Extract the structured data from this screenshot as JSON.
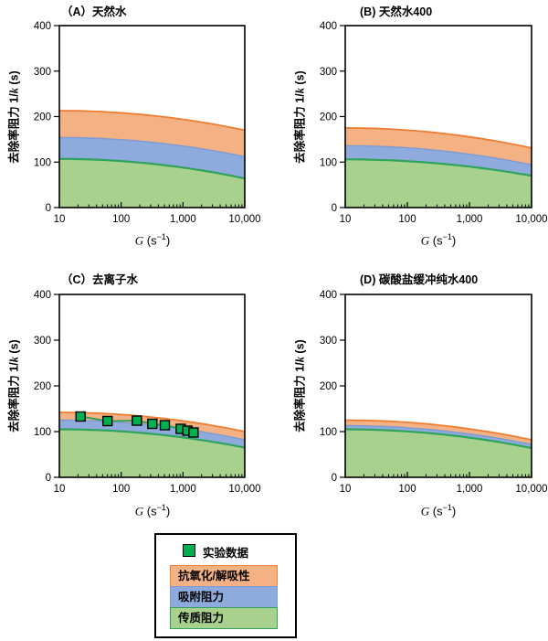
{
  "figure": {
    "background": "#FFFFFF",
    "y_label": {
      "prefix": "去除率阻力 1/",
      "italic": "k",
      "suffix": " (s)"
    },
    "x_label": {
      "italic": "G",
      "mid": " (s",
      "sup": "−1",
      "end": ")"
    }
  },
  "chart_data": [
    {
      "type": "area",
      "id": "A",
      "title": "（A）天然水",
      "x_scale": "log",
      "xlim": [
        10,
        10000
      ],
      "ylim": [
        0,
        400
      ],
      "x_ticks": [
        "10",
        "100",
        "1,000",
        "10,000"
      ],
      "y_ticks": [
        "0",
        "100",
        "200",
        "300",
        "400"
      ],
      "xlabel": "G (s⁻¹)",
      "ylabel": "去除率阻力 1/k (s)",
      "curve_model": "cumulative top of each band: v(G) = start − (start−end)·((log10(G)−1)²)/9",
      "series": [
        {
          "name": "传质阻力",
          "fill": "#A9D18E",
          "line": "#2FA35B",
          "start": 107,
          "end": 64
        },
        {
          "name": "吸附阻力",
          "fill": "#8FAADC",
          "line": "#7C9BD4",
          "start": 154,
          "end": 112
        },
        {
          "name": "抗氧化/解吸性",
          "fill": "#F4B183",
          "line": "#ED7D31",
          "start": 213,
          "end": 170
        }
      ]
    },
    {
      "type": "area",
      "id": "B",
      "title": "(B) 天然水400",
      "x_scale": "log",
      "xlim": [
        10,
        10000
      ],
      "ylim": [
        0,
        400
      ],
      "x_ticks": [
        "10",
        "100",
        "1,000",
        "10,000"
      ],
      "y_ticks": [
        "0",
        "100",
        "200",
        "300",
        "400"
      ],
      "xlabel": "G (s⁻¹)",
      "ylabel": "去除率阻力 1/k (s)",
      "series": [
        {
          "name": "传质阻力",
          "fill": "#A9D18E",
          "line": "#2FA35B",
          "start": 106,
          "end": 70
        },
        {
          "name": "吸附阻力",
          "fill": "#8FAADC",
          "line": "#7C9BD4",
          "start": 136,
          "end": 94
        },
        {
          "name": "抗氧化/解吸性",
          "fill": "#F4B183",
          "line": "#ED7D31",
          "start": 175,
          "end": 131
        }
      ]
    },
    {
      "type": "area",
      "id": "C",
      "title": "（C）去离子水",
      "x_scale": "log",
      "xlim": [
        10,
        10000
      ],
      "ylim": [
        0,
        400
      ],
      "x_ticks": [
        "10",
        "100",
        "1,000",
        "10,000"
      ],
      "y_ticks": [
        "0",
        "100",
        "200",
        "300",
        "400"
      ],
      "xlabel": "G (s⁻¹)",
      "ylabel": "去除率阻力 1/k (s)",
      "series": [
        {
          "name": "传质阻力",
          "fill": "#A9D18E",
          "line": "#2FA35B",
          "start": 105,
          "end": 65
        },
        {
          "name": "吸附阻力",
          "fill": "#8FAADC",
          "line": "#7C9BD4",
          "start": 125,
          "end": 82
        },
        {
          "name": "抗氧化/解吸性",
          "fill": "#F4B183",
          "line": "#ED7D31",
          "start": 142,
          "end": 100
        }
      ],
      "points": {
        "name": "实验数据",
        "marker": "square",
        "fill": "#00B050",
        "line": "#2FA35B",
        "G": [
          22,
          60,
          180,
          320,
          510,
          920,
          1180,
          1480
        ],
        "values": [
          133,
          123,
          124,
          117,
          114,
          106,
          102,
          98
        ]
      }
    },
    {
      "type": "area",
      "id": "D",
      "title": "(D) 碳酸盐缓冲纯水400",
      "x_scale": "log",
      "xlim": [
        10,
        10000
      ],
      "ylim": [
        0,
        400
      ],
      "x_ticks": [
        "10",
        "100",
        "1,000",
        "10,000"
      ],
      "y_ticks": [
        "0",
        "100",
        "200",
        "300",
        "400"
      ],
      "xlabel": "G (s⁻¹)",
      "ylabel": "去除率阻力 1/k (s)",
      "series": [
        {
          "name": "传质阻力",
          "fill": "#A9D18E",
          "line": "#2FA35B",
          "start": 105,
          "end": 64
        },
        {
          "name": "吸附阻力",
          "fill": "#8FAADC",
          "line": "#7C9BD4",
          "start": 113,
          "end": 72
        },
        {
          "name": "抗氧化/解吸性",
          "fill": "#F4B183",
          "line": "#ED7D31",
          "start": 125,
          "end": 82
        }
      ]
    }
  ],
  "legend": {
    "items": [
      {
        "label": "实验数据",
        "type": "marker",
        "fill": "#00B050"
      },
      {
        "label": "抗氧化/解吸性",
        "type": "band",
        "fill": "#F4B183",
        "border": "#ED7D31"
      },
      {
        "label": "吸附阻力",
        "type": "band",
        "fill": "#8FAADC",
        "border": "#7C9BD4"
      },
      {
        "label": "传质阻力",
        "type": "band",
        "fill": "#A9D18E",
        "border": "#2FA35B"
      }
    ]
  }
}
